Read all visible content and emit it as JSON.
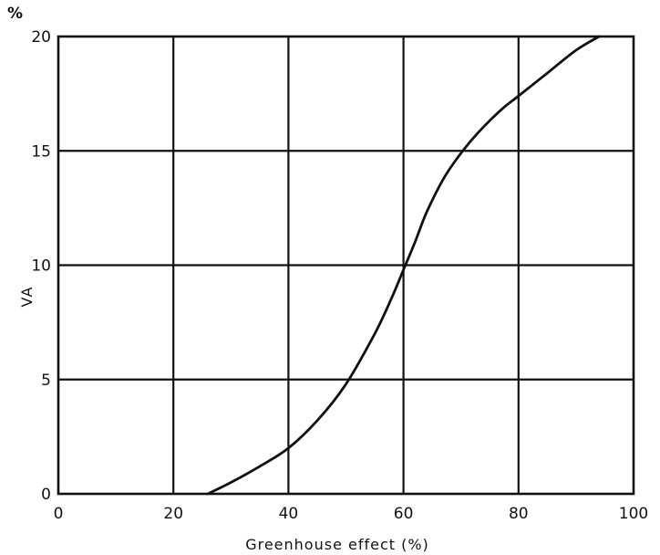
{
  "chart_data": {
    "type": "line",
    "title": "",
    "xlabel": "Greenhouse effect (%)",
    "ylabel": "VA",
    "y_unit": "%",
    "xlim": [
      0,
      100
    ],
    "ylim": [
      0,
      20
    ],
    "xticks": [
      "0",
      "20",
      "40",
      "60",
      "80",
      "100"
    ],
    "yticks": [
      "0",
      "5",
      "10",
      "15",
      "20"
    ],
    "grid": true,
    "series": [
      {
        "x": [
          26,
          30,
          35,
          40,
          45,
          50,
          55,
          58,
          60,
          62,
          64,
          67,
          70,
          73,
          77,
          80,
          85,
          90,
          94
        ],
        "y": [
          0,
          0.5,
          1.2,
          2.0,
          3.2,
          4.8,
          7.0,
          8.6,
          9.8,
          11.0,
          12.3,
          13.8,
          14.9,
          15.8,
          16.8,
          17.4,
          18.4,
          19.4,
          20.0
        ]
      }
    ],
    "colors": {
      "line": "#111111",
      "grid": "#111111",
      "background": "#ffffff"
    }
  }
}
